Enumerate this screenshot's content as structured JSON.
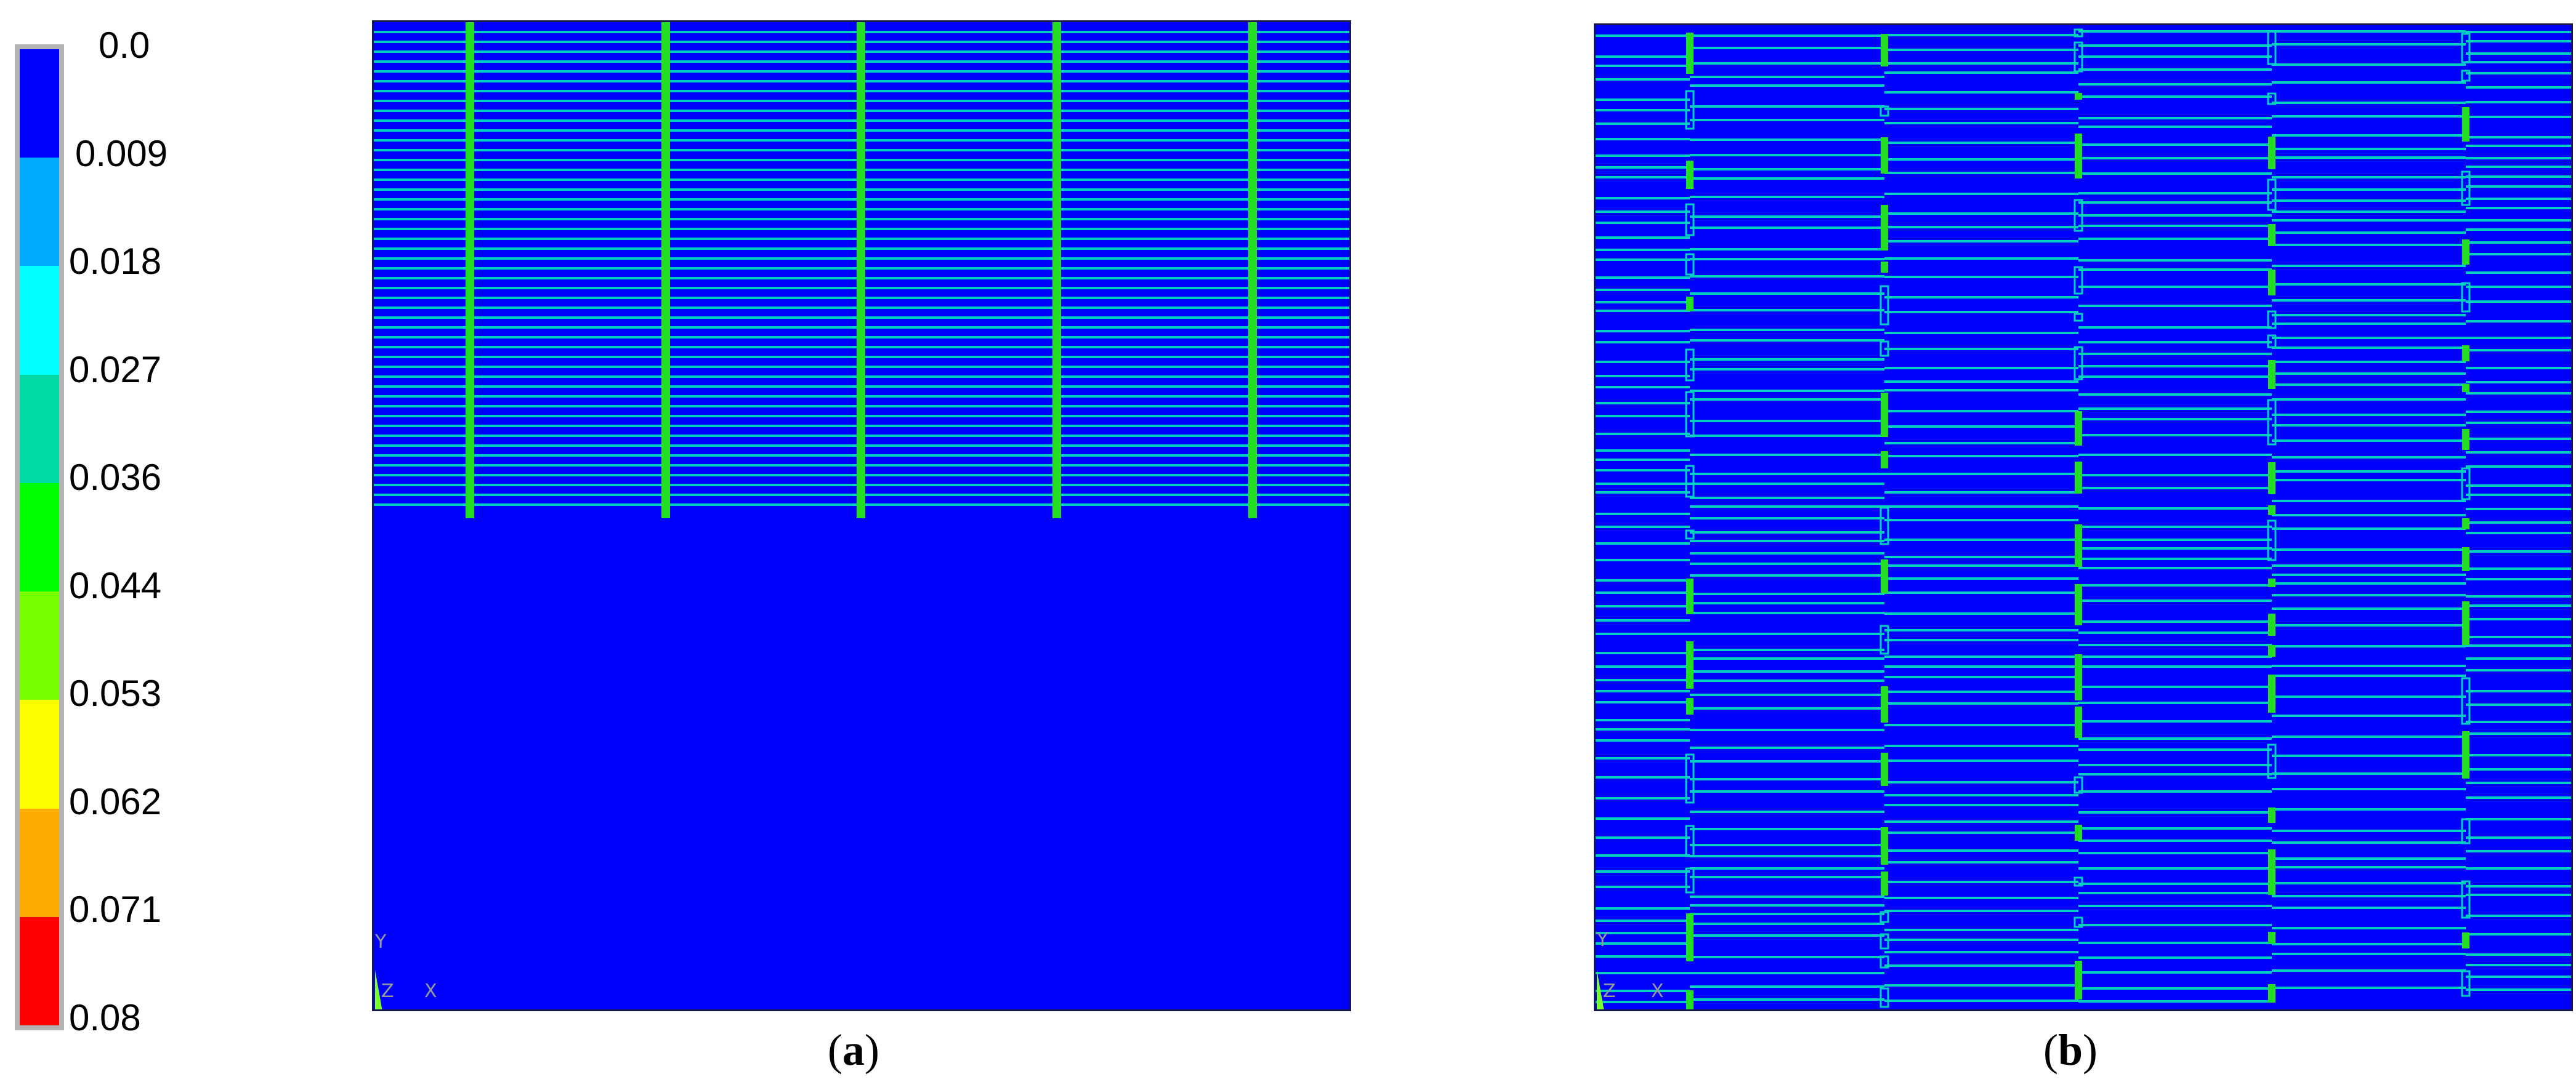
{
  "legend": {
    "labels": [
      "0.0",
      "0.009",
      "0.018",
      "0.027",
      "0.036",
      "0.044",
      "0.053",
      "0.062",
      "0.071",
      "0.08"
    ],
    "colors": [
      "#0000ff",
      "#00aaff",
      "#00ffff",
      "#00d9a6",
      "#00ff00",
      "#77ff00",
      "#ffff00",
      "#ffaa00",
      "#ff0000"
    ]
  },
  "panels": {
    "a": {
      "caption_open": "(",
      "caption_letter": "a",
      "caption_close": ")",
      "axis_y": "Y",
      "axis_x": "X",
      "axis_z": "Z"
    },
    "b": {
      "caption_open": "(",
      "caption_letter": "b",
      "caption_close": ")",
      "axis_y": "Y",
      "axis_x": "X",
      "axis_z": "Z"
    }
  },
  "colors": {
    "background": "#0000ff",
    "crack_line": "#00d0c0",
    "vertical_bar": "#22dd22"
  }
}
